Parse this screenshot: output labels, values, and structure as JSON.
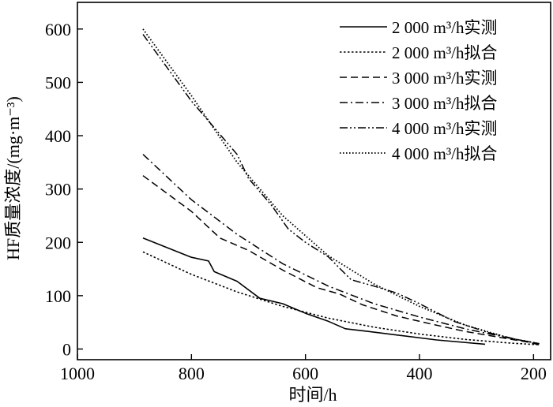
{
  "chart_data": {
    "type": "line",
    "xlabel": "时间/h",
    "ylabel": "HF质量浓度/(mg·m⁻³)",
    "xlim": [
      1000,
      170
    ],
    "ylim": [
      -20,
      650
    ],
    "x_reversed": true,
    "x_ticks": [
      1000,
      800,
      600,
      400,
      200
    ],
    "x_tick_labels": [
      "1000",
      "800",
      "600",
      "400",
      "200"
    ],
    "y_ticks": [
      0,
      100,
      200,
      300,
      400,
      500,
      600
    ],
    "y_tick_labels": [
      "0",
      "100",
      "200",
      "300",
      "400",
      "500",
      "600"
    ],
    "grid": false,
    "legend_position": "top-right",
    "series": [
      {
        "name": "2 000 m³/h实测",
        "style": "solid",
        "x": [
          885,
          800,
          770,
          760,
          720,
          680,
          640,
          600,
          560,
          530,
          490,
          430,
          370,
          285
        ],
        "y": [
          208,
          172,
          165,
          145,
          127,
          95,
          85,
          67,
          52,
          38,
          33,
          25,
          17,
          9
        ]
      },
      {
        "name": "2 000 m³/h拟合",
        "style": "dotted",
        "x": [
          885,
          800,
          720,
          640,
          560,
          480,
          400,
          320,
          240,
          190
        ],
        "y": [
          182,
          140,
          107,
          80,
          58,
          41,
          28,
          18,
          11,
          8
        ]
      },
      {
        "name": "3 000 m³/h实测",
        "style": "dashed",
        "x": [
          885,
          800,
          750,
          700,
          640,
          580,
          540,
          500,
          440,
          380,
          320,
          260,
          210,
          190
        ],
        "y": [
          325,
          258,
          208,
          185,
          148,
          115,
          103,
          83,
          62,
          47,
          33,
          22,
          13,
          8
        ]
      },
      {
        "name": "3 000 m³/h拟合",
        "style": "dashdot",
        "x": [
          885,
          800,
          720,
          640,
          560,
          480,
          400,
          320,
          240,
          190
        ],
        "y": [
          365,
          280,
          215,
          160,
          118,
          85,
          60,
          38,
          20,
          10
        ]
      },
      {
        "name": "4 000 m³/h实测",
        "style": "dashdotdot",
        "x": [
          885,
          800,
          720,
          700,
          660,
          630,
          600,
          560,
          520,
          480,
          440,
          400,
          340,
          280,
          230,
          190
        ],
        "y": [
          590,
          465,
          365,
          320,
          270,
          225,
          200,
          173,
          130,
          118,
          105,
          85,
          52,
          31,
          18,
          10
        ]
      },
      {
        "name": "4 000 m³/h拟合",
        "style": "fine-dotted",
        "x": [
          885,
          800,
          720,
          640,
          560,
          480,
          400,
          320,
          240,
          190
        ],
        "y": [
          600,
          475,
          350,
          250,
          175,
          122,
          80,
          45,
          20,
          10
        ]
      }
    ]
  }
}
